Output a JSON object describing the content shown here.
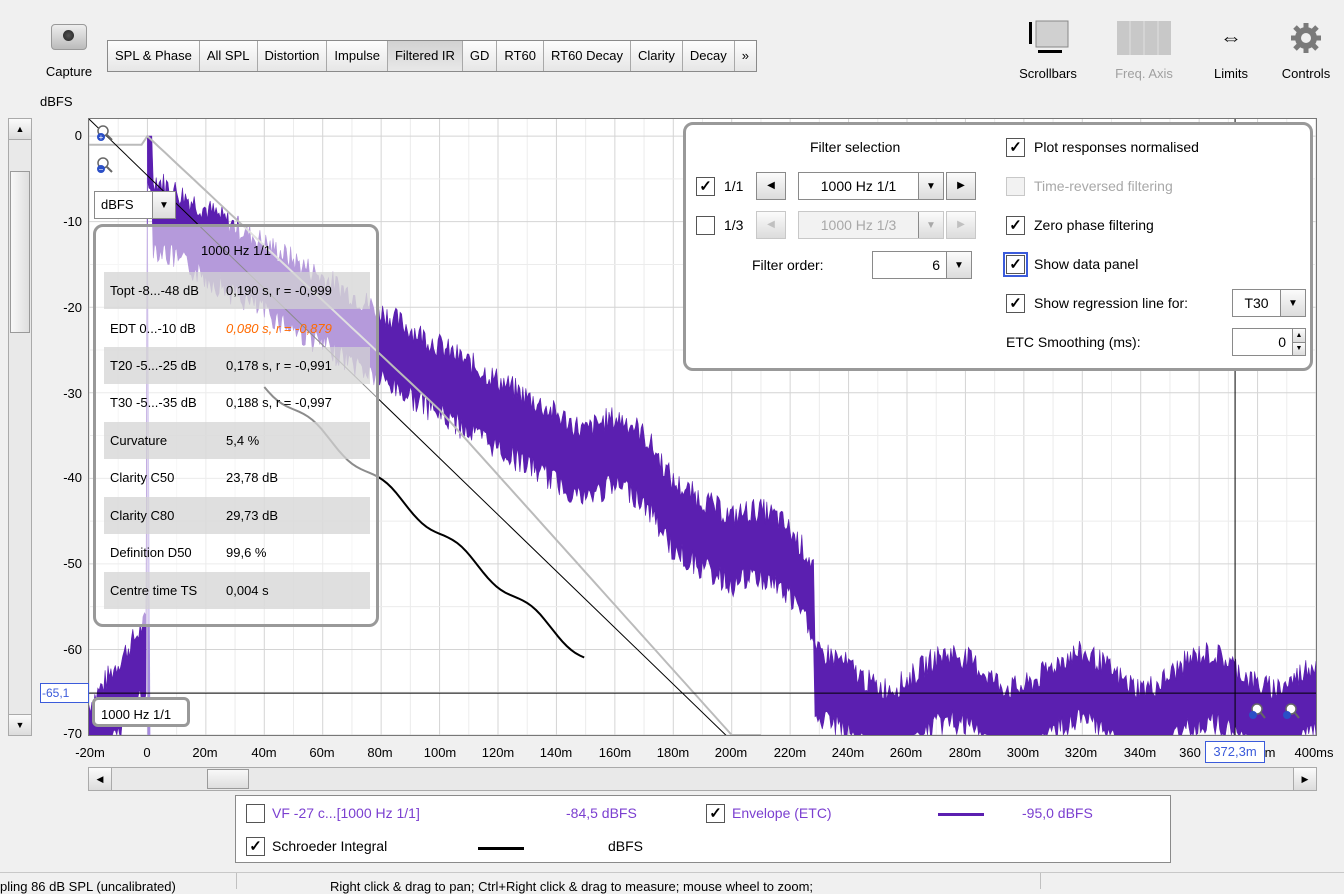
{
  "toolbar": {
    "capture_label": "Capture",
    "tabs": [
      "SPL & Phase",
      "All SPL",
      "Distortion",
      "Impulse",
      "Filtered IR",
      "GD",
      "RT60",
      "RT60 Decay",
      "Clarity",
      "Decay",
      "»"
    ],
    "active_tab": "Filtered IR",
    "scrollbars_label": "Scrollbars",
    "freq_axis_label": "Freq. Axis",
    "limits_label": "Limits",
    "controls_label": "Controls"
  },
  "axes": {
    "y_unit": "dBFS",
    "y_ticks": [
      "0",
      "-10",
      "-20",
      "-30",
      "-40",
      "-50",
      "-60",
      "-70"
    ],
    "x_ticks": [
      "-20m",
      "0",
      "20m",
      "40m",
      "60m",
      "80m",
      "100m",
      "120m",
      "140m",
      "160m",
      "180m",
      "200m",
      "220m",
      "240m",
      "260m",
      "280m",
      "300m",
      "320m",
      "340m",
      "360",
      "m",
      "400ms"
    ],
    "cursor_y": "-65,1",
    "cursor_x": "372,3m"
  },
  "unit_selector": {
    "value": "dBFS"
  },
  "data_panel": {
    "title": "1000 Hz 1/1",
    "rows": [
      {
        "name": "Topt -8...-48 dB",
        "value": "0,190 s,  r = -0,999"
      },
      {
        "name": "EDT  0...-10 dB",
        "value": "0,080 s, r = -0,879"
      },
      {
        "name": "T20 -5...-25 dB",
        "value": "0,178 s,  r = -0,991"
      },
      {
        "name": "T30 -5...-35 dB",
        "value": "0,188 s,  r = -0,997"
      },
      {
        "name": "Curvature",
        "value": "5,4 %"
      },
      {
        "name": "Clarity C50",
        "value": "23,78 dB"
      },
      {
        "name": "Clarity C80",
        "value": "29,73 dB"
      },
      {
        "name": "Definition D50",
        "value": "99,6 %"
      },
      {
        "name": "Centre time TS",
        "value": "0,004 s"
      }
    ]
  },
  "filter_panel": {
    "title": "Filter selection",
    "octave_label": "1/1",
    "octave_checked": true,
    "octave_value": "1000 Hz 1/1",
    "third_label": "1/3",
    "third_checked": false,
    "third_value": "1000 Hz 1/3",
    "filter_order_label": "Filter order:",
    "filter_order_value": "6",
    "plot_normalised_label": "Plot responses normalised",
    "time_reversed_label": "Time-reversed filtering",
    "zero_phase_label": "Zero phase filtering",
    "show_data_panel_label": "Show data panel",
    "show_regression_label": "Show regression line for:",
    "regression_value": "T30",
    "etc_smoothing_label": "ETC Smoothing (ms):",
    "etc_smoothing_value": "0"
  },
  "series_tag": "1000 Hz 1/1",
  "legend": {
    "items": [
      {
        "label": "VF -27 c...[1000 Hz 1/1]",
        "checked": false,
        "value": "-84,5 dBFS",
        "color": "#7b3fd0"
      },
      {
        "label": "Envelope (ETC)",
        "checked": true,
        "value": "-95,0 dBFS",
        "color": "#5b1fb0"
      },
      {
        "label": "Schroeder Integral",
        "checked": true,
        "value": "dBFS",
        "color": "#000000"
      }
    ]
  },
  "status": {
    "left": "pling 86 dB SPL (uncalibrated)",
    "center": "Right click & drag to pan; Ctrl+Right click & drag to measure; mouse wheel to zoom;"
  },
  "colors": {
    "accent": "#3b5bdb",
    "etc": "#5b1fb0",
    "ir": "#a58ae0",
    "orange": "#ff6a00"
  }
}
